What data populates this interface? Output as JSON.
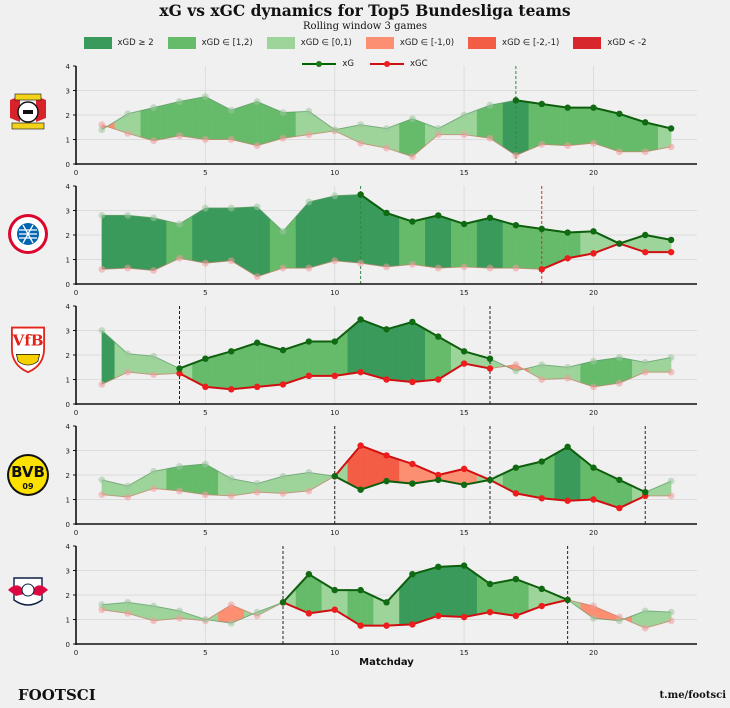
{
  "title": "xG vs xGC dynamics for Top5 Bundesliga teams",
  "subtitle": "Rolling window 3 games",
  "footer": {
    "brand": "FOOTSCI",
    "link": "t.me/footsci"
  },
  "legend": {
    "bands": [
      {
        "label": "xGD ≥ 2",
        "color": "#3a9a5b"
      },
      {
        "label": "xGD ∈ [1,2)",
        "color": "#66bb6a"
      },
      {
        "label": "xGD ∈ [0,1)",
        "color": "#9dd49a"
      },
      {
        "label": "xGD ∈ [-1,0)",
        "color": "#fc8e72"
      },
      {
        "label": "xGD ∈ [-2,-1)",
        "color": "#f45d45"
      },
      {
        "label": "xGD < -2",
        "color": "#d7262c"
      }
    ],
    "lines": [
      {
        "label": "xG",
        "color": "#006400",
        "dot": "#1a7a1a"
      },
      {
        "label": "xGC",
        "color": "#d01010",
        "dot": "#ee1c1c"
      }
    ]
  },
  "chart_data": {
    "type": "line",
    "title": "xG vs xGC dynamics for Top5 Bundesliga teams",
    "subtitle": "Rolling window 3 games",
    "xlabel": "Matchday",
    "ylabel": "",
    "xlim": [
      0,
      24
    ],
    "ylim": [
      0,
      4
    ],
    "xticks": [
      0,
      5,
      10,
      15,
      20
    ],
    "yticks": [
      0,
      1,
      2,
      3,
      4
    ],
    "grid": true,
    "legend_position": "top-center",
    "x": [
      1,
      2,
      3,
      4,
      5,
      6,
      7,
      8,
      9,
      10,
      11,
      12,
      13,
      14,
      15,
      16,
      17,
      18,
      19,
      20,
      21,
      22,
      23
    ],
    "teams": [
      {
        "name": "Bayer Leverkusen",
        "logo": "leverkusen-logo",
        "xG": [
          1.4,
          2.05,
          2.3,
          2.55,
          2.75,
          2.2,
          2.55,
          2.1,
          2.15,
          1.4,
          1.6,
          1.45,
          1.85,
          1.45,
          2.0,
          2.4,
          2.6,
          2.45,
          2.3,
          2.3,
          2.05,
          1.7,
          1.45
        ],
        "xGC": [
          1.6,
          1.25,
          0.95,
          1.15,
          1.0,
          1.0,
          0.75,
          1.05,
          1.2,
          1.35,
          0.85,
          0.65,
          0.3,
          1.2,
          1.2,
          1.05,
          0.35,
          0.8,
          0.75,
          0.85,
          0.5,
          0.5,
          0.7
        ],
        "xG_bold": [
          17,
          23
        ],
        "xGC_bold": null,
        "vlines": [
          {
            "x": 17,
            "color": "#2e8b3e"
          }
        ]
      },
      {
        "name": "Bayern München",
        "logo": "bayern-logo",
        "xG": [
          2.8,
          2.8,
          2.7,
          2.45,
          3.1,
          3.1,
          3.15,
          2.15,
          3.35,
          3.6,
          3.65,
          2.9,
          2.55,
          2.8,
          2.45,
          2.7,
          2.4,
          2.25,
          2.1,
          2.15,
          1.65,
          2.0,
          1.8
        ],
        "xGC": [
          0.6,
          0.65,
          0.55,
          1.05,
          0.85,
          0.95,
          0.3,
          0.65,
          0.65,
          0.95,
          0.85,
          0.7,
          0.8,
          0.65,
          0.7,
          0.65,
          0.65,
          0.6,
          1.05,
          1.25,
          1.65,
          1.3,
          1.3
        ],
        "xG_bold": [
          11,
          23
        ],
        "xGC_bold": [
          18,
          23
        ],
        "vlines": [
          {
            "x": 11,
            "color": "#2e8b3e"
          },
          {
            "x": 18,
            "color": "#c0392b"
          }
        ]
      },
      {
        "name": "VfB Stuttgart",
        "logo": "stuttgart-logo",
        "xG": [
          3.0,
          2.05,
          1.95,
          1.45,
          1.85,
          2.15,
          2.5,
          2.2,
          2.55,
          2.55,
          3.45,
          3.05,
          3.35,
          2.75,
          2.15,
          1.85,
          1.35,
          1.6,
          1.5,
          1.75,
          1.9,
          1.7,
          1.9
        ],
        "xGC": [
          0.8,
          1.3,
          1.2,
          1.25,
          0.7,
          0.6,
          0.7,
          0.8,
          1.15,
          1.15,
          1.3,
          1.0,
          0.9,
          1.0,
          1.65,
          1.45,
          1.6,
          1.0,
          1.05,
          0.7,
          0.85,
          1.3,
          1.3
        ],
        "xG_bold": [
          4,
          16
        ],
        "xGC_bold": [
          4,
          16
        ],
        "vlines": [
          {
            "x": 4,
            "color": "#222222"
          },
          {
            "x": 16,
            "color": "#222222"
          }
        ]
      },
      {
        "name": "Borussia Dortmund",
        "logo": "dortmund-logo",
        "xG": [
          1.8,
          1.55,
          2.15,
          2.35,
          2.45,
          1.85,
          1.65,
          1.95,
          2.1,
          1.95,
          1.4,
          1.75,
          1.65,
          1.8,
          1.6,
          1.8,
          2.3,
          2.55,
          3.15,
          2.3,
          1.8,
          1.3,
          1.75
        ],
        "xGC": [
          1.2,
          1.1,
          1.45,
          1.35,
          1.2,
          1.15,
          1.3,
          1.25,
          1.35,
          1.95,
          3.2,
          2.8,
          2.45,
          2.0,
          2.25,
          1.8,
          1.25,
          1.05,
          0.95,
          1.0,
          0.65,
          1.15,
          1.15
        ],
        "xG_bold": [
          10,
          22
        ],
        "xGC_bold": [
          10,
          22
        ],
        "vlines": [
          {
            "x": 10,
            "color": "#222222"
          },
          {
            "x": 16,
            "color": "#222222"
          },
          {
            "x": 22,
            "color": "#222222"
          }
        ]
      },
      {
        "name": "RB Leipzig",
        "logo": "leipzig-logo",
        "xG": [
          1.6,
          1.7,
          1.55,
          1.35,
          1.0,
          0.85,
          1.3,
          1.7,
          2.85,
          2.2,
          2.2,
          1.7,
          2.85,
          3.15,
          3.2,
          2.45,
          2.65,
          2.25,
          1.8,
          1.05,
          0.95,
          1.35,
          1.3
        ],
        "xGC": [
          1.4,
          1.25,
          0.95,
          1.05,
          0.95,
          1.6,
          1.15,
          1.7,
          1.25,
          1.4,
          0.75,
          0.75,
          0.8,
          1.15,
          1.1,
          1.3,
          1.15,
          1.55,
          1.8,
          1.55,
          1.1,
          0.65,
          0.95
        ],
        "xG_bold": [
          8,
          19
        ],
        "xGC_bold": [
          8,
          19
        ],
        "vlines": [
          {
            "x": 8,
            "color": "#222222"
          },
          {
            "x": 19,
            "color": "#222222"
          }
        ]
      }
    ]
  }
}
